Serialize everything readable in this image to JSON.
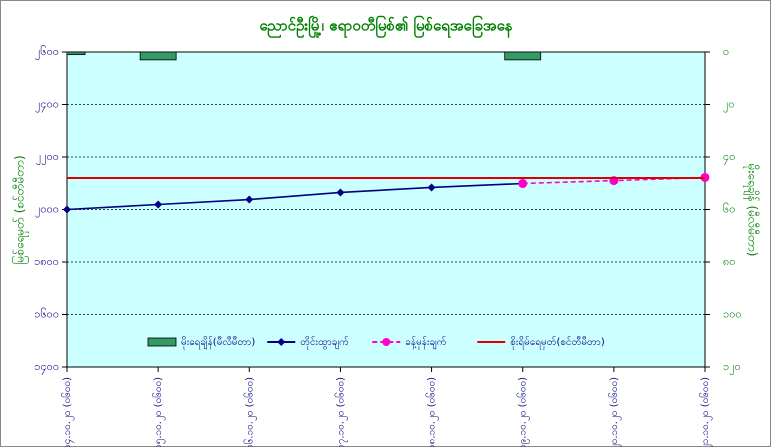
{
  "chart_data": {
    "type": "combo",
    "title": "ညောင်ဦးမြို့၊ ဧရာဝတီမြစ်၏ မြစ်ရေအခြေအနေ",
    "y_label": "မြစ်ရေမှတ် (စင်တီမီတာ)",
    "y2_label": "မိုးရေချိန် (မီလီမီတာ)",
    "categories": [
      "၁၄.၁၀.၂၀ (၀၆၀၀)",
      "၁၅.၁၀.၂၀ (၀၆၀၀)",
      "၁၆.၁၀.၂၀ (၀၆၀၀)",
      "၁၇.၁၀.၂၀ (၀၆၀၀)",
      "၁၈.၁၀.၂၀ (၀၆၀၀)",
      "၁၉.၁၀.၂၀ (၀၆၀၀)",
      "၂၀.၁၀.၂၀ (၀၆၀၀)",
      "၂၁.၁၀.၂၀ (၀၆၀၀)"
    ],
    "ylim": [
      1400,
      2600
    ],
    "yticks": [
      {
        "value": 1400,
        "label": "၁၄၀၀"
      },
      {
        "value": 1600,
        "label": "၁၆၀၀"
      },
      {
        "value": 1800,
        "label": "၁၈၀၀"
      },
      {
        "value": 2000,
        "label": "၂၀၀၀"
      },
      {
        "value": 2200,
        "label": "၂၂၀၀"
      },
      {
        "value": 2400,
        "label": "၂၄၀၀"
      },
      {
        "value": 2600,
        "label": "၂၆၀၀"
      }
    ],
    "y2lim": [
      120,
      0
    ],
    "y2ticks": [
      {
        "value": 0,
        "label": "၀"
      },
      {
        "value": 20,
        "label": "၂၀"
      },
      {
        "value": 40,
        "label": "၄၀"
      },
      {
        "value": 60,
        "label": "၆၀"
      },
      {
        "value": 80,
        "label": "၈၀"
      },
      {
        "value": 100,
        "label": "၁၀၀"
      },
      {
        "value": 120,
        "label": "၁၂၀"
      }
    ],
    "grid": true,
    "series": [
      {
        "name": "မိုးရေချိန်(မီလီမီတာ)",
        "type": "bar",
        "axis": "y2",
        "color": "#339966",
        "values": [
          1,
          3,
          0,
          0,
          0,
          3,
          0,
          0
        ]
      },
      {
        "name": "တိုင်းထွာချက်",
        "type": "line",
        "marker": "diamond",
        "color": "#000080",
        "values": [
          2000,
          2019,
          2038,
          2065,
          2084,
          2099,
          null,
          null
        ]
      },
      {
        "name": "ခန့်မှန်းချက်",
        "type": "line",
        "marker": "circle",
        "dashed": true,
        "color": "#ff00cc",
        "values": [
          null,
          null,
          null,
          null,
          null,
          2099,
          2110,
          2122
        ]
      },
      {
        "name": "စိုးရိမ်ရေမှတ်(စင်တီမီတာ)",
        "type": "line",
        "color": "#dd0000",
        "values": [
          2120,
          2120,
          2120,
          2120,
          2120,
          2120,
          2120,
          2120
        ]
      }
    ]
  }
}
